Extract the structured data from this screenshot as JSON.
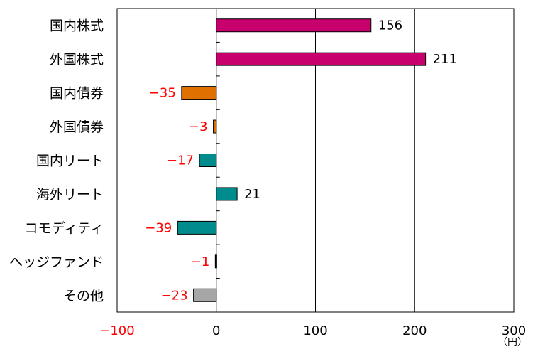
{
  "chart_data": {
    "type": "bar",
    "orientation": "horizontal",
    "title": "",
    "xlabel": "",
    "ylabel": "",
    "x_unit": "（円）",
    "xlim": [
      -100,
      300
    ],
    "x_ticks": [
      -100,
      0,
      100,
      200,
      300
    ],
    "grid": "vertical gridlines at 100 and 200",
    "categories": [
      "国内株式",
      "外国株式",
      "国内債券",
      "外国債券",
      "国内リート",
      "海外リート",
      "コモディティ",
      "ヘッジファンド",
      "その他"
    ],
    "values": [
      156,
      211,
      -35,
      -3,
      -17,
      21,
      -39,
      -1,
      -23
    ],
    "value_labels": [
      "156",
      "211",
      "−35",
      "−3",
      "−17",
      "21",
      "−39",
      "−1",
      "−23"
    ],
    "bar_colors": [
      "#c8006e",
      "#c8006e",
      "#e07000",
      "#e07000",
      "#008c8c",
      "#008c8c",
      "#008c8c",
      "#000000",
      "#a6a6a6"
    ],
    "negative_label_color": "#ff0000",
    "negative_tick_color": "#ff0000",
    "positive_label_color": "#000000"
  }
}
